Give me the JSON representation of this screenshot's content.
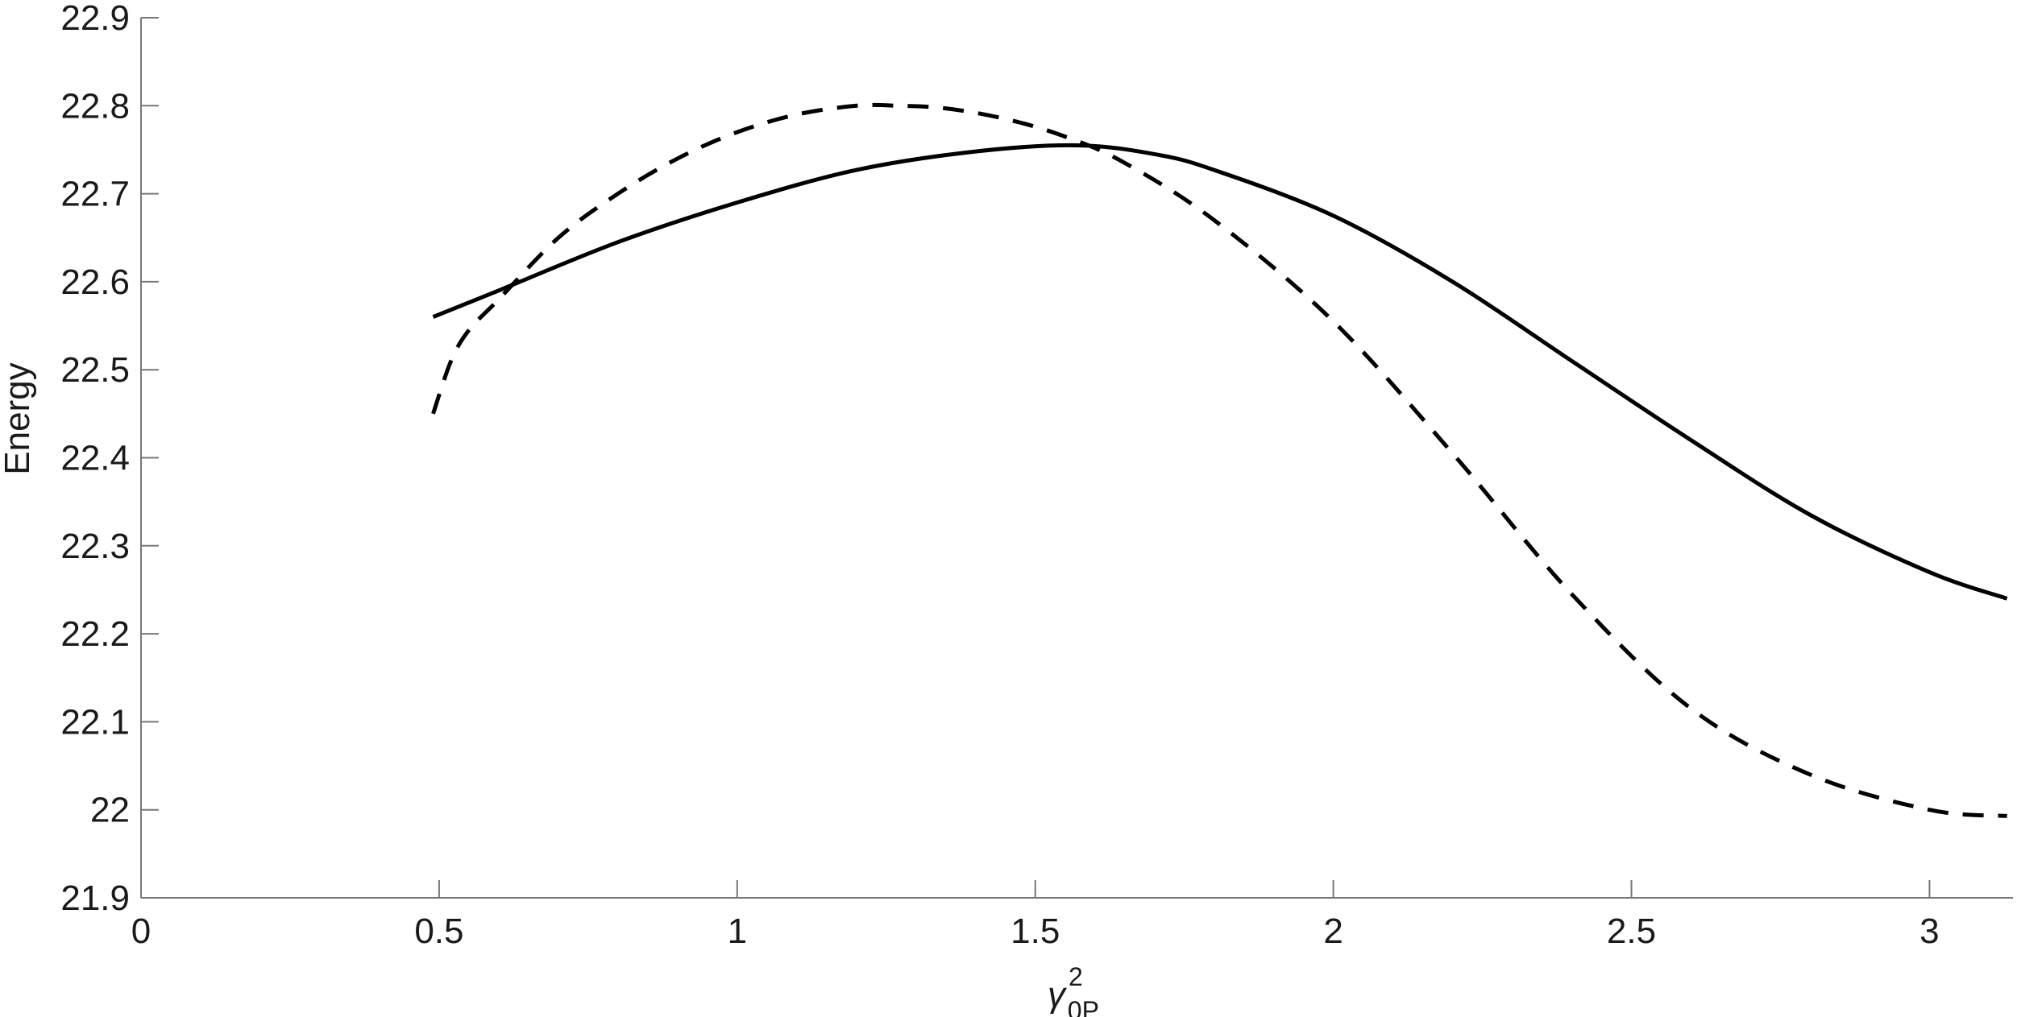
{
  "chart_data": {
    "type": "line",
    "title": "",
    "xlabel": "γ",
    "xlabel_superscript": "2",
    "xlabel_subscript": "0P",
    "ylabel": "Energy",
    "xlim": [
      0,
      3.14
    ],
    "ylim": [
      21.9,
      22.9
    ],
    "xticks": [
      0,
      0.5,
      1,
      1.5,
      2,
      2.5,
      3
    ],
    "xtick_labels": [
      "0",
      "0.5",
      "1",
      "1.5",
      "2",
      "2.5",
      "3"
    ],
    "yticks": [
      21.9,
      22.0,
      22.1,
      22.2,
      22.3,
      22.4,
      22.5,
      22.6,
      22.7,
      22.8,
      22.9
    ],
    "ytick_labels": [
      "21.9",
      "22",
      "22.1",
      "22.2",
      "22.3",
      "22.4",
      "22.5",
      "22.6",
      "22.7",
      "22.8",
      "22.9"
    ],
    "grid": false,
    "legend": "none",
    "series": [
      {
        "style": "solid",
        "color": "#000000",
        "x": [
          0.49,
          0.6,
          0.8,
          1.0,
          1.2,
          1.4,
          1.57,
          1.7,
          1.8,
          2.0,
          2.2,
          2.4,
          2.6,
          2.8,
          3.0,
          3.13
        ],
        "y": [
          22.56,
          22.59,
          22.645,
          22.69,
          22.727,
          22.748,
          22.755,
          22.745,
          22.727,
          22.675,
          22.6,
          22.51,
          22.42,
          22.335,
          22.27,
          22.24
        ]
      },
      {
        "style": "dashed",
        "color": "#000000",
        "x": [
          0.49,
          0.52,
          0.55,
          0.6,
          0.7,
          0.8,
          0.9,
          1.0,
          1.1,
          1.2,
          1.27,
          1.35,
          1.45,
          1.55,
          1.65,
          1.8,
          2.0,
          2.2,
          2.4,
          2.6,
          2.8,
          3.0,
          3.13
        ],
        "y": [
          22.45,
          22.51,
          22.545,
          22.58,
          22.65,
          22.7,
          22.74,
          22.77,
          22.79,
          22.8,
          22.8,
          22.797,
          22.785,
          22.765,
          22.735,
          22.67,
          22.555,
          22.405,
          22.245,
          22.115,
          22.04,
          22.0,
          21.993
        ]
      }
    ]
  }
}
